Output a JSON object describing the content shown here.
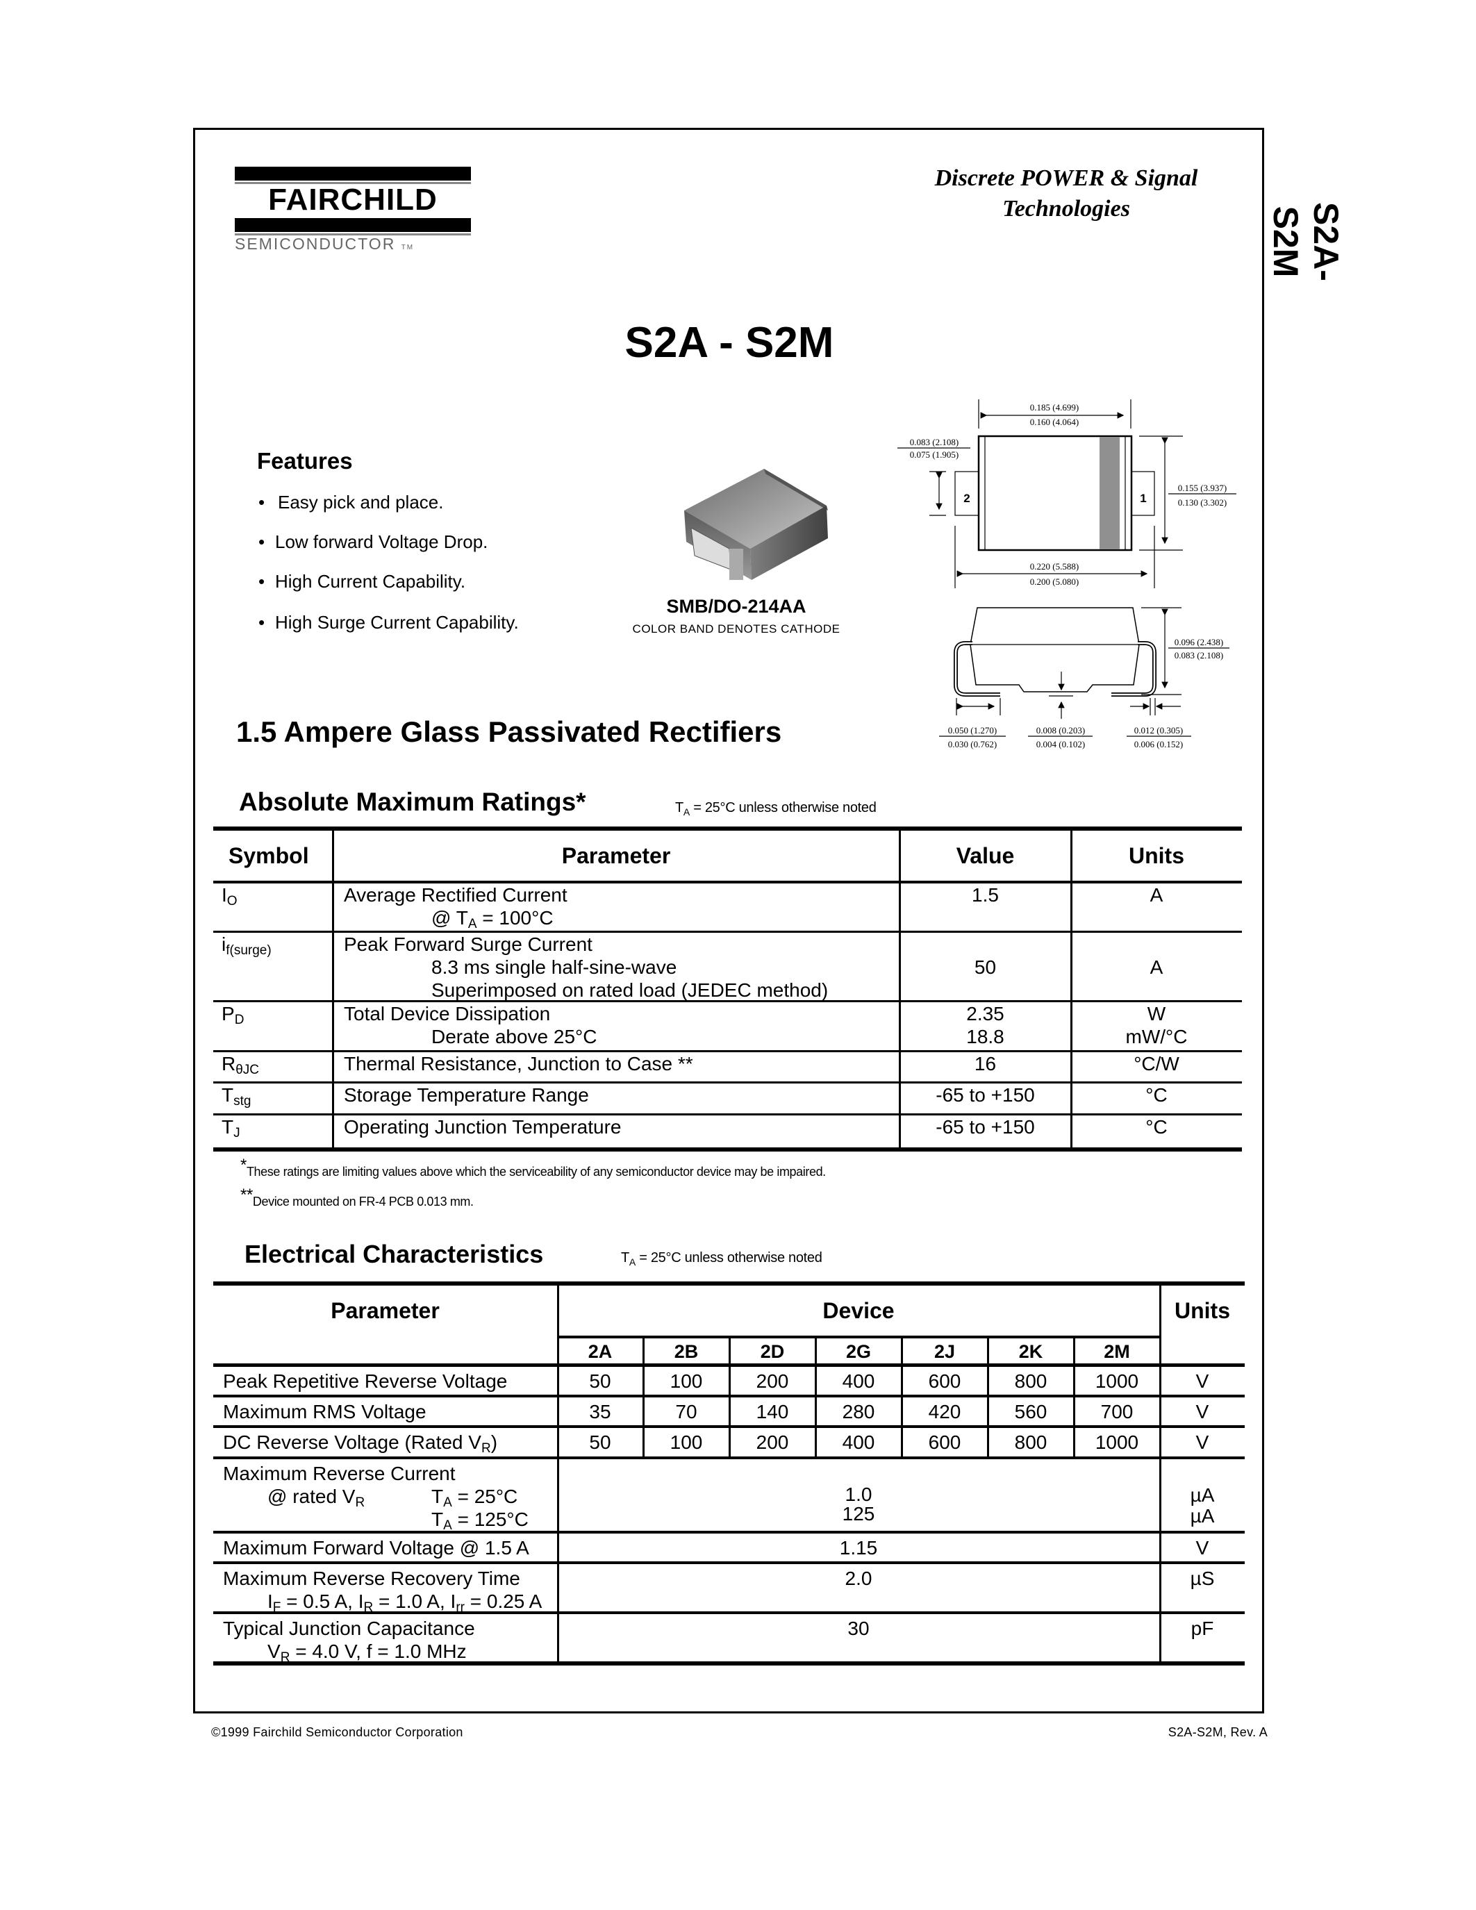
{
  "side_title": "S2A-S2M",
  "logo": {
    "name": "FAIRCHILD",
    "sub": "SEMICONDUCTOR",
    "tm": "TM"
  },
  "tagline": {
    "line1": "Discrete POWER & Signal",
    "line2": "Technologies"
  },
  "title": "S2A - S2M",
  "features": {
    "heading": "Features",
    "items": [
      "Easy pick and place.",
      "Low forward Voltage Drop.",
      "High Current Capability.",
      "High Surge Current Capability."
    ]
  },
  "package": {
    "name": "SMB/DO-214AA",
    "note": "COLOR BAND DENOTES CATHODE",
    "pin_labels": [
      "2",
      "1"
    ],
    "dimensions": {
      "top_width": [
        "0.185 (4.699)",
        "0.160 (4.064)"
      ],
      "tab_height": [
        "0.083 (2.108)",
        "0.075 (1.905)"
      ],
      "body_height": [
        "0.155 (3.937)",
        "0.130 (3.302)"
      ],
      "overall_width": [
        "0.220 (5.588)",
        "0.200 (5.080)"
      ],
      "thickness": [
        "0.096 (2.438)",
        "0.083 (2.108)"
      ],
      "lead_length": [
        "0.050 (1.270)",
        "0.030 (0.762)"
      ],
      "standoff": [
        "0.008 (0.203)",
        "0.004 (0.102)"
      ],
      "lead_thickness": [
        "0.012 (0.305)",
        "0.006 (0.152)"
      ]
    },
    "band_color": "#909090"
  },
  "subtitle": "1.5 Ampere Glass Passivated Rectifiers",
  "abs_max": {
    "heading": "Absolute Maximum Ratings*",
    "note": {
      "pre": "T",
      "sub": "A",
      "post": " = 25°C unless otherwise noted"
    },
    "headers": [
      "Symbol",
      "Parameter",
      "Value",
      "Units"
    ],
    "rows": [
      {
        "symbol": [
          "I",
          {
            "sub": "O"
          }
        ],
        "param": [
          [
            "Average Rectified Current"
          ],
          [
            "@ T",
            {
              "sub": "A"
            },
            " = 100°C"
          ]
        ],
        "value": [
          "1.5"
        ],
        "units": [
          "A"
        ]
      },
      {
        "symbol": [
          "i",
          {
            "sub": "f(surge)"
          }
        ],
        "param": [
          [
            "Peak Forward Surge Current"
          ],
          [
            "8.3 ms single half-sine-wave"
          ],
          [
            "Superimposed on rated load (JEDEC method)"
          ]
        ],
        "value": [
          "",
          "50"
        ],
        "units": [
          "",
          "A"
        ]
      },
      {
        "symbol": [
          "P",
          {
            "sub": "D"
          }
        ],
        "param": [
          [
            "Total Device Dissipation"
          ],
          [
            "Derate above 25°C"
          ]
        ],
        "value": [
          "2.35",
          "18.8"
        ],
        "units": [
          "W",
          "mW/°C"
        ]
      },
      {
        "symbol": [
          "R",
          {
            "sub": "θJC"
          }
        ],
        "param": [
          [
            "Thermal Resistance, Junction to Case **"
          ]
        ],
        "value": [
          "16"
        ],
        "units": [
          "°C/W"
        ]
      },
      {
        "symbol": [
          "T",
          {
            "sub": "stg"
          }
        ],
        "param": [
          [
            "Storage Temperature Range"
          ]
        ],
        "value": [
          "-65 to +150"
        ],
        "units": [
          "°C"
        ]
      },
      {
        "symbol": [
          "T",
          {
            "sub": "J"
          }
        ],
        "param": [
          [
            "Operating Junction Temperature"
          ]
        ],
        "value": [
          "-65 to +150"
        ],
        "units": [
          "°C"
        ]
      }
    ],
    "footnotes": [
      {
        "mark": "*",
        "text": "These ratings are limiting values above which the serviceability of any semiconductor device may be impaired."
      },
      {
        "mark": "**",
        "text": "Device mounted on FR-4 PCB 0.013 mm."
      }
    ]
  },
  "elec": {
    "heading": "Electrical Characteristics",
    "note": {
      "pre": "T",
      "sub": "A",
      "post": " = 25°C unless otherwise noted"
    },
    "headers": {
      "parameter": "Parameter",
      "device": "Device",
      "units": "Units"
    },
    "devices": [
      "2A",
      "2B",
      "2D",
      "2G",
      "2J",
      "2K",
      "2M"
    ],
    "rows": [
      {
        "param": [
          [
            "Peak Repetitive Reverse Voltage"
          ]
        ],
        "values": [
          "50",
          "100",
          "200",
          "400",
          "600",
          "800",
          "1000"
        ],
        "units": [
          "V"
        ]
      },
      {
        "param": [
          [
            "Maximum RMS Voltage"
          ]
        ],
        "values": [
          "35",
          "70",
          "140",
          "280",
          "420",
          "560",
          "700"
        ],
        "units": [
          "V"
        ]
      },
      {
        "param": [
          [
            "DC Reverse Voltage (Rated V",
            {
              "sub": "R"
            },
            ")"
          ]
        ],
        "values": [
          "50",
          "100",
          "200",
          "400",
          "600",
          "800",
          "1000"
        ],
        "units": [
          "V"
        ]
      },
      {
        "param": [
          [
            "Maximum Reverse Current"
          ],
          [
            "@ rated V",
            {
              "sub": "R"
            }
          ],
          [
            "T",
            {
              "sub": "A"
            },
            " = 125°C"
          ]
        ],
        "param_extra": [
          "T",
          {
            "sub": "A"
          },
          " = 25°C"
        ],
        "merged": [
          "",
          "1.0",
          "125"
        ],
        "units": [
          "",
          "µA",
          "µA"
        ]
      },
      {
        "param": [
          [
            "Maximum Forward Voltage @ 1.5 A"
          ]
        ],
        "merged": [
          "1.15"
        ],
        "units": [
          "V"
        ]
      },
      {
        "param": [
          [
            "Maximum Reverse Recovery Time"
          ],
          [
            "I",
            {
              "sub": "F"
            },
            " = 0.5 A, I",
            {
              "sub": "R"
            },
            " = 1.0 A, I",
            {
              "sub": "rr"
            },
            " = 0.25 A"
          ]
        ],
        "merged": [
          "2.0"
        ],
        "units": [
          "µS"
        ]
      },
      {
        "param": [
          [
            "Typical Junction Capacitance"
          ],
          [
            "V",
            {
              "sub": "R"
            },
            " = 4.0 V, f = 1.0 MHz"
          ]
        ],
        "merged": [
          "30"
        ],
        "units": [
          "pF"
        ]
      }
    ]
  },
  "footer": {
    "copyright": "©1999 Fairchild Semiconductor Corporation",
    "rev": "S2A-S2M, Rev. A"
  }
}
